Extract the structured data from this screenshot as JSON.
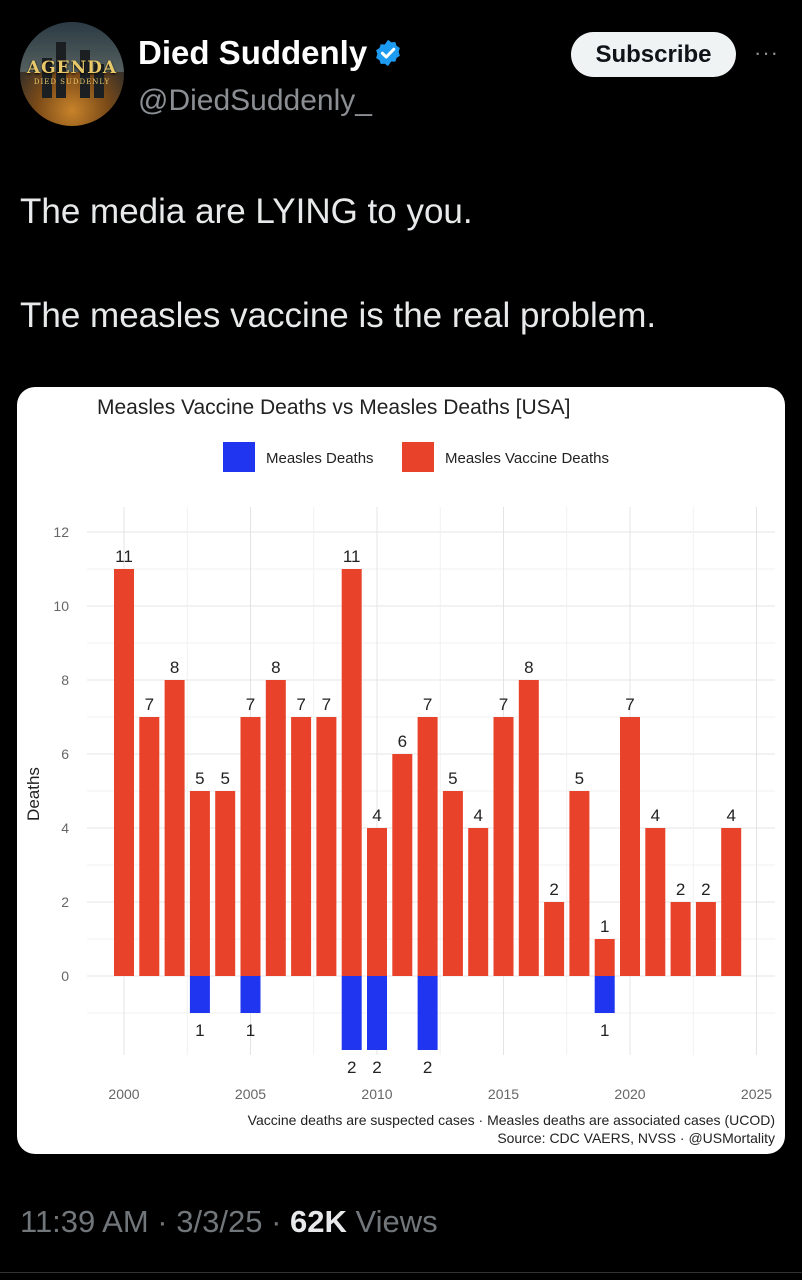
{
  "author": {
    "avatar_brand": "AGENDA",
    "avatar_sub": "DIED SUDDENLY",
    "name": "Died Suddenly",
    "handle": "@DiedSuddenly_",
    "verified_icon": "verified-badge-icon"
  },
  "actions": {
    "subscribe_label": "Subscribe",
    "more_label": "···"
  },
  "tweet": {
    "line1": "The media are LYING to you.",
    "line2": "The measles vaccine is the real problem."
  },
  "meta": {
    "time": "11:39 AM",
    "sep1": " · ",
    "date": "3/3/25",
    "sep2": " · ",
    "views_count": "62K",
    "views_label": " Views"
  },
  "colors": {
    "vaccine": "#e8432a",
    "measles": "#1f35f0",
    "accent": "#1d9bf0"
  },
  "chart_data": {
    "type": "bar",
    "title": "Measles Vaccine Deaths vs Measles Deaths [USA]",
    "ylabel": "Deaths",
    "xlabel": "",
    "legend": [
      "Measles Deaths",
      "Measles Vaccine Deaths"
    ],
    "legend_position": "top",
    "grid": true,
    "xlim": [
      1999.5,
      2025
    ],
    "ylim": [
      -2,
      12
    ],
    "xticks": [
      2000,
      2005,
      2010,
      2015,
      2020,
      2025
    ],
    "yticks": [
      0,
      2,
      4,
      6,
      8,
      10,
      12
    ],
    "series": [
      {
        "name": "Measles Vaccine Deaths",
        "x": [
          2000,
          2001,
          2002,
          2003,
          2004,
          2005,
          2006,
          2007,
          2008,
          2009,
          2010,
          2011,
          2012,
          2013,
          2014,
          2015,
          2016,
          2017,
          2018,
          2019,
          2020,
          2021,
          2022,
          2023,
          2024
        ],
        "values": [
          11,
          7,
          8,
          5,
          5,
          7,
          8,
          7,
          7,
          11,
          4,
          6,
          7,
          5,
          4,
          7,
          8,
          2,
          5,
          1,
          7,
          4,
          2,
          2,
          4
        ]
      },
      {
        "name": "Measles Deaths",
        "x": [
          2003,
          2005,
          2009,
          2010,
          2012,
          2019
        ],
        "values": [
          1,
          1,
          2,
          2,
          2,
          1
        ]
      }
    ],
    "caption": "Vaccine deaths are suspected cases · Measles deaths are associated cases (UCOD)",
    "source": "Source: CDC VAERS, NVSS · @USMortality"
  }
}
